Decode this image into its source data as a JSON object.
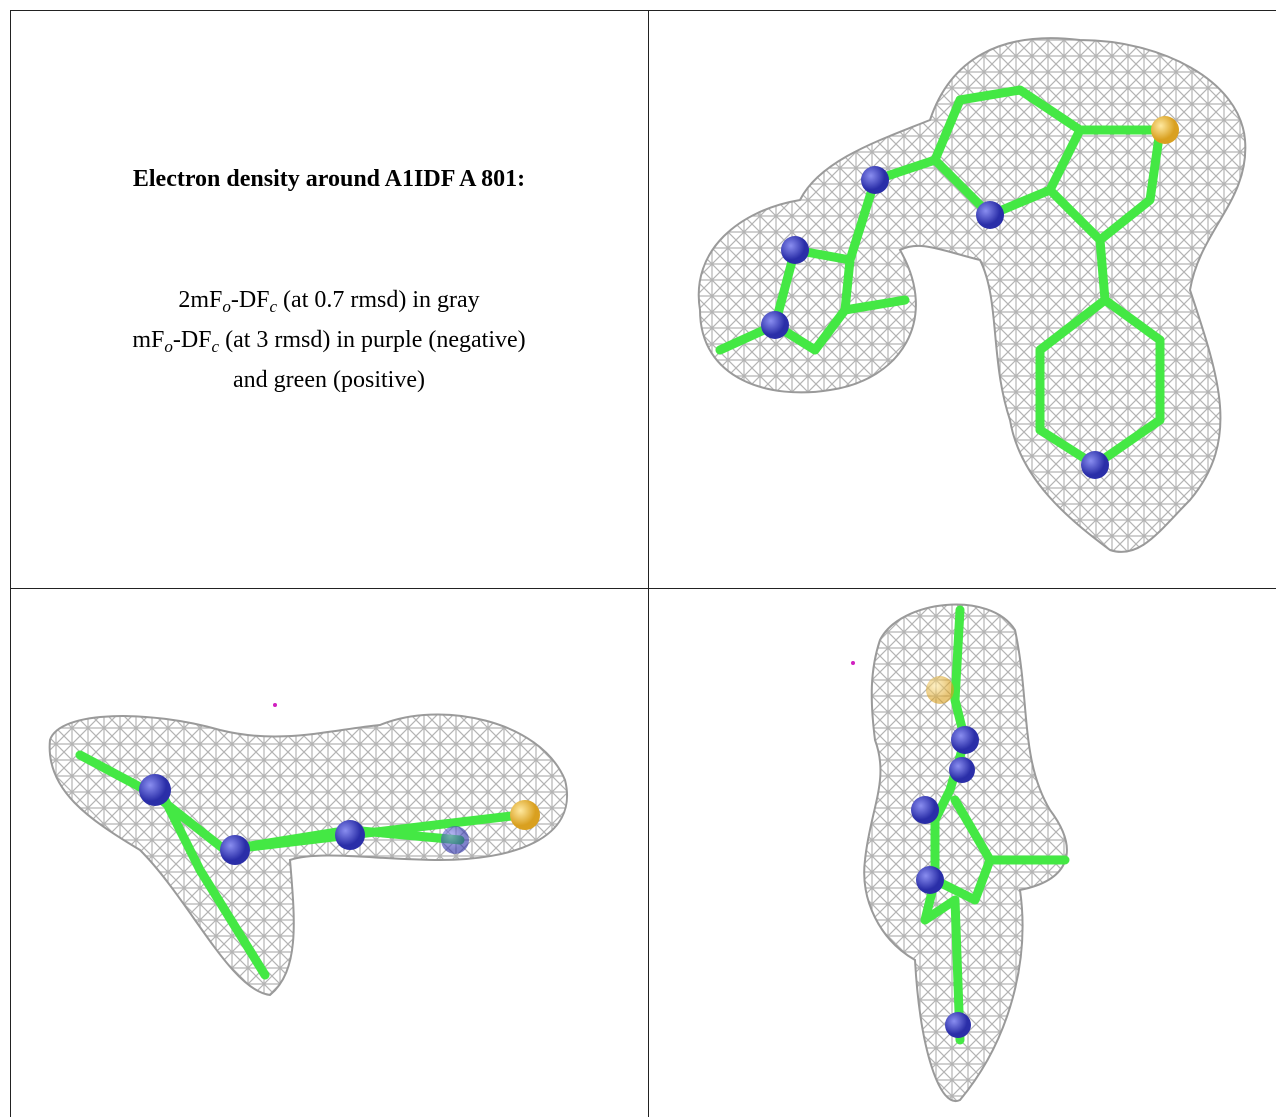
{
  "figure": {
    "title": "Electron density around A1IDF A 801:",
    "legend": [
      [
        {
          "text": "2mF"
        },
        {
          "sub": "o"
        },
        {
          "text": "-DF"
        },
        {
          "sub": "c"
        },
        {
          "text": " (at 0.7 rmsd) in gray"
        }
      ],
      [
        {
          "text": "mF"
        },
        {
          "sub": "o"
        },
        {
          "text": "-DF"
        },
        {
          "sub": "c"
        },
        {
          "text": " (at 3 rmsd) in purple (negative)"
        }
      ],
      [
        {
          "text": "and green (positive)"
        }
      ]
    ]
  }
}
